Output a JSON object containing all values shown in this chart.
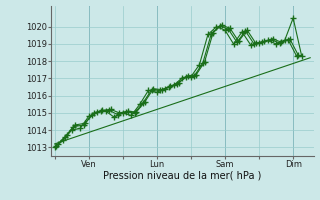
{
  "background_color": "#cce8e8",
  "grid_color": "#99cccc",
  "line_color": "#1a6e1a",
  "marker_color": "#1a6e1a",
  "ylabel_text": "Pression niveau de la mer( hPa )",
  "ylim": [
    1012.5,
    1021.2
  ],
  "yticks": [
    1013,
    1014,
    1015,
    1016,
    1017,
    1018,
    1019,
    1020
  ],
  "xtick_labels": [
    "",
    "Ven",
    "",
    "Lun",
    "",
    "Sam",
    "",
    "Dim"
  ],
  "xtick_positions": [
    0,
    1,
    2,
    3,
    4,
    5,
    6,
    7
  ],
  "xlim": [
    -0.1,
    7.6
  ],
  "series1_x": [
    0.0,
    0.25,
    0.5,
    0.75,
    1.0,
    1.25,
    1.5,
    1.75,
    2.0,
    2.25,
    2.5,
    2.75,
    3.0,
    3.25,
    3.5,
    3.75,
    4.0,
    4.25,
    4.5,
    4.75,
    5.0,
    5.25,
    5.5,
    5.75,
    6.0,
    6.25,
    6.5,
    6.75,
    7.0,
    7.25
  ],
  "series1_y": [
    1013.0,
    1013.4,
    1014.0,
    1014.1,
    1014.8,
    1015.05,
    1015.1,
    1014.75,
    1015.0,
    1014.85,
    1015.5,
    1016.3,
    1016.2,
    1016.4,
    1016.6,
    1017.05,
    1017.1,
    1017.8,
    1019.55,
    1020.0,
    1019.8,
    1019.0,
    1019.7,
    1018.95,
    1019.05,
    1019.2,
    1019.0,
    1019.2,
    1020.5,
    1018.3
  ],
  "series2_x": [
    0.05,
    0.3,
    0.55,
    0.85,
    1.1,
    1.35,
    1.6,
    1.85,
    2.1,
    2.35,
    2.6,
    2.85,
    3.1,
    3.35,
    3.6,
    3.85,
    4.1,
    4.35,
    4.6,
    4.85,
    5.1,
    5.35,
    5.6,
    5.85,
    6.1,
    6.35,
    6.6,
    6.85,
    7.1
  ],
  "series2_y": [
    1013.1,
    1013.6,
    1014.2,
    1014.3,
    1014.9,
    1015.1,
    1015.15,
    1014.9,
    1015.05,
    1015.0,
    1015.6,
    1016.35,
    1016.3,
    1016.5,
    1016.7,
    1017.1,
    1017.15,
    1017.9,
    1019.6,
    1020.05,
    1019.85,
    1019.1,
    1019.75,
    1019.0,
    1019.1,
    1019.25,
    1019.05,
    1019.25,
    1018.3
  ],
  "series3_x": [
    0.1,
    0.35,
    0.6,
    0.9,
    1.15,
    1.4,
    1.65,
    1.9,
    2.15,
    2.4,
    2.65,
    2.9,
    3.15,
    3.4,
    3.65,
    3.9,
    4.15,
    4.4,
    4.65,
    4.9,
    5.15,
    5.4,
    5.65,
    5.9,
    6.15,
    6.4,
    6.65,
    6.9,
    7.15
  ],
  "series3_y": [
    1013.2,
    1013.7,
    1014.3,
    1014.4,
    1015.0,
    1015.15,
    1015.2,
    1015.0,
    1015.1,
    1015.05,
    1015.65,
    1016.4,
    1016.35,
    1016.55,
    1016.75,
    1017.15,
    1017.2,
    1017.95,
    1019.65,
    1020.1,
    1019.9,
    1019.15,
    1019.8,
    1019.05,
    1019.15,
    1019.3,
    1019.1,
    1019.3,
    1018.35
  ],
  "trend_x": [
    0.0,
    7.5
  ],
  "trend_y": [
    1013.2,
    1018.2
  ],
  "figsize": [
    3.2,
    2.0
  ],
  "dpi": 100
}
